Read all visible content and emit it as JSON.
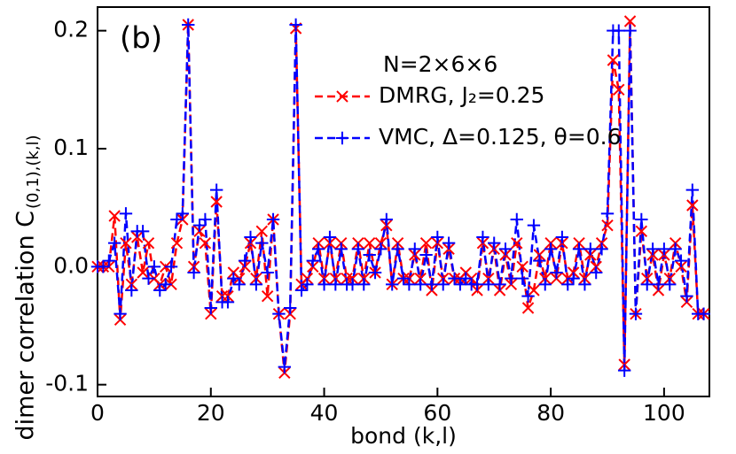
{
  "chart_data": {
    "type": "line",
    "panel_label": "(b)",
    "legend_title": "N=2×6×6",
    "xlabel": "bond (k,l)",
    "ylabel": "dimer correlation C",
    "ylabel_subscript": "(0,1),(k,l)",
    "x": [
      0,
      1,
      2,
      3,
      4,
      5,
      6,
      7,
      8,
      9,
      10,
      11,
      12,
      13,
      14,
      15,
      16,
      17,
      18,
      19,
      20,
      21,
      22,
      23,
      24,
      25,
      26,
      27,
      28,
      29,
      30,
      31,
      32,
      33,
      34,
      35,
      36,
      37,
      38,
      39,
      40,
      41,
      42,
      43,
      44,
      45,
      46,
      47,
      48,
      49,
      50,
      51,
      52,
      53,
      54,
      55,
      56,
      57,
      58,
      59,
      60,
      61,
      62,
      63,
      64,
      65,
      66,
      67,
      68,
      69,
      70,
      71,
      72,
      73,
      74,
      75,
      76,
      77,
      78,
      79,
      80,
      81,
      82,
      83,
      84,
      85,
      86,
      87,
      88,
      89,
      90,
      91,
      92,
      93,
      94,
      95,
      96,
      97,
      98,
      99,
      100,
      101,
      102,
      103,
      104,
      105,
      106,
      107
    ],
    "series": [
      {
        "name": "DMRG, J₂=0.25",
        "color": "#ff0000",
        "marker": "x",
        "values": [
          0,
          0,
          0,
          0.043,
          -0.045,
          0.02,
          -0.015,
          0.025,
          -0.005,
          0.02,
          -0.01,
          -0.015,
          0,
          -0.015,
          0.02,
          0.04,
          0.205,
          0,
          0.03,
          0.02,
          -0.04,
          0.055,
          -0.025,
          -0.025,
          -0.005,
          -0.01,
          0,
          0.02,
          -0.01,
          0.03,
          -0.025,
          0.04,
          -0.04,
          -0.09,
          -0.04,
          0.202,
          -0.015,
          -0.01,
          0,
          0.02,
          -0.01,
          0.02,
          -0.01,
          0.02,
          -0.01,
          -0.01,
          0.02,
          -0.01,
          0.02,
          -0.005,
          0.02,
          0.035,
          -0.015,
          0.02,
          -0.01,
          -0.01,
          0.01,
          -0.01,
          0.02,
          -0.02,
          0.02,
          -0.01,
          0.015,
          -0.01,
          -0.01,
          -0.005,
          -0.01,
          -0.02,
          0.02,
          -0.01,
          0.015,
          -0.02,
          0.01,
          -0.015,
          0.02,
          0,
          -0.035,
          -0.02,
          0.01,
          -0.01,
          0.02,
          -0.01,
          0.02,
          -0.01,
          -0.005,
          0.02,
          -0.01,
          0.01,
          0,
          0.02,
          0.035,
          0.175,
          0.15,
          -0.083,
          0.208,
          -0.04,
          0.03,
          -0.01,
          0.01,
          -0.02,
          0.01,
          -0.01,
          0.02,
          0,
          -0.03,
          0.052,
          -0.04,
          -0.04
        ]
      },
      {
        "name": "VMC, Δ=0.125, θ=0.6",
        "color": "#0000ff",
        "marker": "+",
        "values": [
          0,
          0,
          0.005,
          0.02,
          -0.04,
          0.045,
          -0.02,
          0.03,
          0.03,
          -0.01,
          0,
          -0.02,
          -0.015,
          0,
          0.04,
          0.045,
          0.205,
          -0.005,
          0.035,
          0.04,
          -0.035,
          0.065,
          -0.03,
          -0.03,
          -0.01,
          -0.015,
          0.005,
          0.025,
          -0.015,
          0.02,
          -0.005,
          0.04,
          -0.04,
          -0.085,
          -0.035,
          0.205,
          -0.02,
          -0.015,
          0.005,
          0.015,
          -0.015,
          0.025,
          -0.015,
          0.015,
          -0.015,
          -0.015,
          0.015,
          -0.015,
          0.01,
          -0.005,
          0.015,
          0.04,
          -0.015,
          0.015,
          -0.01,
          -0.015,
          0.015,
          -0.015,
          0.01,
          -0.015,
          0.025,
          -0.015,
          0.02,
          -0.01,
          -0.015,
          -0.01,
          -0.015,
          -0.015,
          0.025,
          -0.015,
          0.02,
          -0.015,
          0.015,
          -0.01,
          0.04,
          -0.01,
          -0.025,
          0.035,
          0.005,
          -0.015,
          0.015,
          -0.005,
          0.025,
          -0.015,
          -0.01,
          0.015,
          -0.015,
          0.015,
          -0.005,
          0.015,
          0.045,
          0.2,
          0.2,
          -0.088,
          0.2,
          -0.04,
          0.04,
          -0.015,
          0.015,
          -0.015,
          0.015,
          -0.015,
          0.015,
          0.005,
          -0.025,
          0.065,
          -0.04,
          -0.04
        ]
      }
    ],
    "xlim": [
      0,
      108
    ],
    "xticks": [
      0,
      20,
      40,
      60,
      80,
      100
    ],
    "ylim": [
      -0.11,
      0.22
    ],
    "yticks": [
      {
        "value": -0.1,
        "label": "-0.1"
      },
      {
        "value": 0,
        "label": "0.0"
      },
      0.1,
      0.2
    ],
    "legend_position": "upper center"
  }
}
